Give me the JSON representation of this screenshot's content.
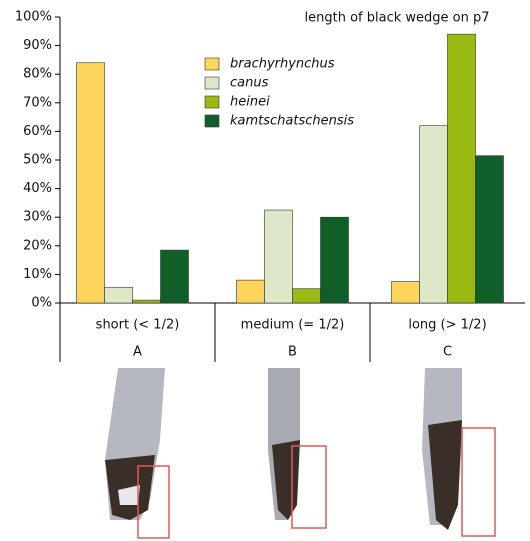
{
  "chart_data": {
    "type": "bar",
    "legend_title": "length of black wedge on p7",
    "categories": [
      "short (< 1/2)",
      "medium (= 1/2)",
      "long (> 1/2)"
    ],
    "category_letters": [
      "A",
      "B",
      "C"
    ],
    "series": [
      {
        "name": "brachyrhynchus",
        "color": "#fdd55a",
        "values": [
          84,
          8,
          7.5
        ]
      },
      {
        "name": "canus",
        "color": "#dce8c8",
        "values": [
          5.5,
          32.5,
          62
        ]
      },
      {
        "name": "heinei",
        "color": "#99bb11",
        "values": [
          1,
          5,
          94
        ]
      },
      {
        "name": "kamtschatschensis",
        "color": "#115f28",
        "values": [
          18.5,
          30,
          51.5
        ]
      }
    ],
    "ylim": [
      0,
      100
    ],
    "yticks": [
      {
        "value": 0,
        "label": "0%"
      },
      {
        "value": 10,
        "label": "10%"
      },
      {
        "value": 20,
        "label": "20%"
      },
      {
        "value": 30,
        "label": "30%"
      },
      {
        "value": 40,
        "label": "40%"
      },
      {
        "value": 50,
        "label": "50%"
      },
      {
        "value": 60,
        "label": "60%"
      },
      {
        "value": 70,
        "label": "70%"
      },
      {
        "value": 80,
        "label": "80%"
      },
      {
        "value": 90,
        "label": "90%"
      },
      {
        "value": 100,
        "label": "100%"
      }
    ],
    "grid": false
  }
}
